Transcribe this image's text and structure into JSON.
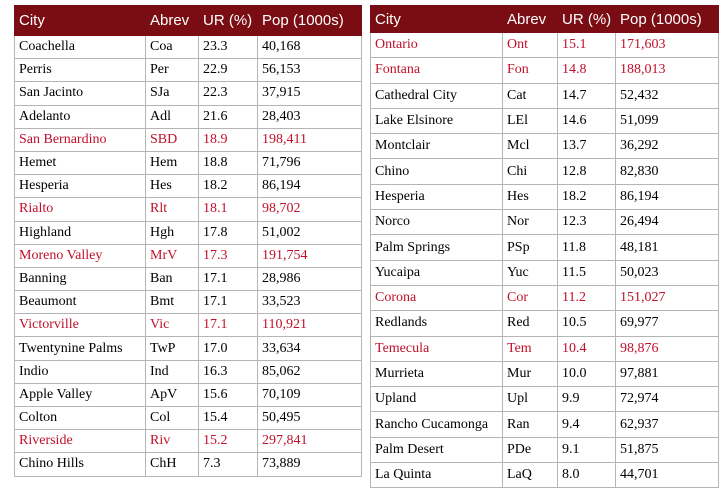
{
  "colors": {
    "header_bg": "#7a0c14",
    "header_text": "#ffffff",
    "highlight_text": "#c0102a",
    "grid": "#b5b5b5"
  },
  "headers": [
    "City",
    "Abrev",
    "UR (%)",
    "Pop (1000s)"
  ],
  "left_table": [
    {
      "city": "Coachella",
      "abrev": "Coa",
      "ur": "23.3",
      "pop": "40,168",
      "highlight": false
    },
    {
      "city": "Perris",
      "abrev": "Per",
      "ur": "22.9",
      "pop": "56,153",
      "highlight": false
    },
    {
      "city": "San Jacinto",
      "abrev": "SJa",
      "ur": "22.3",
      "pop": "37,915",
      "highlight": false
    },
    {
      "city": "Adelanto",
      "abrev": "Adl",
      "ur": "21.6",
      "pop": "28,403",
      "highlight": false
    },
    {
      "city": "San Bernardino",
      "abrev": "SBD",
      "ur": "18.9",
      "pop": "198,411",
      "highlight": true
    },
    {
      "city": "Hemet",
      "abrev": "Hem",
      "ur": "18.8",
      "pop": "71,796",
      "highlight": false
    },
    {
      "city": "Hesperia",
      "abrev": "Hes",
      "ur": "18.2",
      "pop": "86,194",
      "highlight": false
    },
    {
      "city": "Rialto",
      "abrev": "Rlt",
      "ur": "18.1",
      "pop": "98,702",
      "highlight": true
    },
    {
      "city": "Highland",
      "abrev": "Hgh",
      "ur": "17.8",
      "pop": "51,002",
      "highlight": false
    },
    {
      "city": "Moreno Valley",
      "abrev": "MrV",
      "ur": "17.3",
      "pop": "191,754",
      "highlight": true
    },
    {
      "city": "Banning",
      "abrev": "Ban",
      "ur": "17.1",
      "pop": "28,986",
      "highlight": false
    },
    {
      "city": "Beaumont",
      "abrev": "Bmt",
      "ur": "17.1",
      "pop": "33,523",
      "highlight": false
    },
    {
      "city": "Victorville",
      "abrev": "Vic",
      "ur": "17.1",
      "pop": "110,921",
      "highlight": true
    },
    {
      "city": "Twentynine Palms",
      "abrev": "TwP",
      "ur": "17.0",
      "pop": "33,634",
      "highlight": false
    },
    {
      "city": "Indio",
      "abrev": "Ind",
      "ur": "16.3",
      "pop": "85,062",
      "highlight": false
    },
    {
      "city": "Apple Valley",
      "abrev": "ApV",
      "ur": "15.6",
      "pop": "70,109",
      "highlight": false
    },
    {
      "city": "Colton",
      "abrev": "Col",
      "ur": "15.4",
      "pop": "50,495",
      "highlight": false
    },
    {
      "city": "Riverside",
      "abrev": "Riv",
      "ur": "15.2",
      "pop": "297,841",
      "highlight": true
    },
    {
      "city": "Chino Hills",
      "abrev": "ChH",
      "ur": "7.3",
      "pop": "73,889",
      "highlight": false
    }
  ],
  "right_table": [
    {
      "city": "Ontario",
      "abrev": "Ont",
      "ur": "15.1",
      "pop": "171,603",
      "highlight": true
    },
    {
      "city": "Fontana",
      "abrev": "Fon",
      "ur": "14.8",
      "pop": "188,013",
      "highlight": true
    },
    {
      "city": "Cathedral City",
      "abrev": "Cat",
      "ur": "14.7",
      "pop": "52,432",
      "highlight": false
    },
    {
      "city": "Lake Elsinore",
      "abrev": "LEl",
      "ur": "14.6",
      "pop": "51,099",
      "highlight": false
    },
    {
      "city": "Montclair",
      "abrev": "Mcl",
      "ur": "13.7",
      "pop": "36,292",
      "highlight": false
    },
    {
      "city": "Chino",
      "abrev": "Chi",
      "ur": "12.8",
      "pop": "82,830",
      "highlight": false
    },
    {
      "city": "Hesperia",
      "abrev": "Hes",
      "ur": "18.2",
      "pop": "86,194",
      "highlight": false
    },
    {
      "city": "Norco",
      "abrev": "Nor",
      "ur": "12.3",
      "pop": "26,494",
      "highlight": false
    },
    {
      "city": "Palm Springs",
      "abrev": "PSp",
      "ur": "11.8",
      "pop": "48,181",
      "highlight": false
    },
    {
      "city": "Yucaipa",
      "abrev": "Yuc",
      "ur": "11.5",
      "pop": "50,023",
      "highlight": false
    },
    {
      "city": "Corona",
      "abrev": "Cor",
      "ur": "11.2",
      "pop": "151,027",
      "highlight": true
    },
    {
      "city": "Redlands",
      "abrev": "Red",
      "ur": "10.5",
      "pop": "69,977",
      "highlight": false
    },
    {
      "city": "Temecula",
      "abrev": "Tem",
      "ur": "10.4",
      "pop": "98,876",
      "highlight": true
    },
    {
      "city": "Murrieta",
      "abrev": "Mur",
      "ur": "10.0",
      "pop": "97,881",
      "highlight": false
    },
    {
      "city": "Upland",
      "abrev": "Upl",
      "ur": "9.9",
      "pop": "72,974",
      "highlight": false
    },
    {
      "city": "Rancho Cucamonga",
      "abrev": "Ran",
      "ur": "9.4",
      "pop": "62,937",
      "highlight": false
    },
    {
      "city": "Palm Desert",
      "abrev": "PDe",
      "ur": "9.1",
      "pop": "51,875",
      "highlight": false
    },
    {
      "city": "La Quinta",
      "abrev": "LaQ",
      "ur": "8.0",
      "pop": "44,701",
      "highlight": false
    }
  ]
}
